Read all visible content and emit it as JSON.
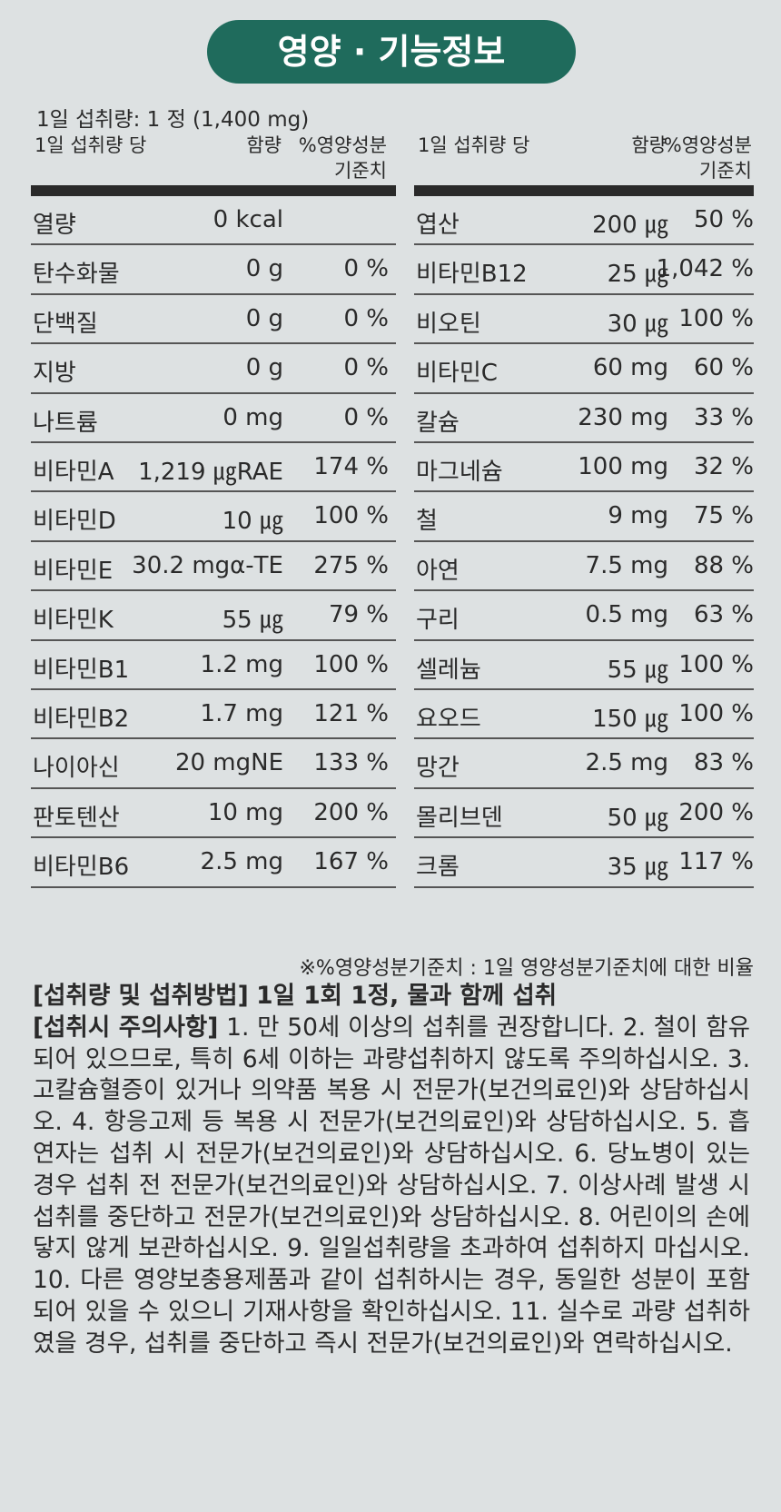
{
  "title": "영양 · 기능정보",
  "serving": "1일 섭취량: 1 정 (1,400 mg)",
  "table_header": {
    "per": "1일 섭취량 당",
    "amount": "함량",
    "dv_line1": "%영양성분",
    "dv_line2": "기준치"
  },
  "left_rows": [
    [
      "열량",
      "0 kcal",
      ""
    ],
    [
      "탄수화물",
      "0 g",
      "0 %"
    ],
    [
      "단백질",
      "0 g",
      "0 %"
    ],
    [
      "지방",
      "0 g",
      "0 %"
    ],
    [
      "나트륨",
      "0 mg",
      "0 %"
    ],
    [
      "비타민A",
      "1,219 ㎍RAE",
      "174 %"
    ],
    [
      "비타민D",
      "10 ㎍",
      "100 %"
    ],
    [
      "비타민E",
      "30.2 mgα-TE",
      "275 %"
    ],
    [
      "비타민K",
      "55 ㎍",
      "79 %"
    ],
    [
      "비타민B1",
      "1.2 mg",
      "100 %"
    ],
    [
      "비타민B2",
      "1.7 mg",
      "121 %"
    ],
    [
      "나이아신",
      "20 mgNE",
      "133 %"
    ],
    [
      "판토텐산",
      "10 mg",
      "200 %"
    ],
    [
      "비타민B6",
      "2.5 mg",
      "167 %"
    ]
  ],
  "right_rows": [
    [
      "엽산",
      "200 ㎍",
      "50 %"
    ],
    [
      "비타민B12",
      "25 ㎍",
      "1,042 %"
    ],
    [
      "비오틴",
      "30 ㎍",
      "100 %"
    ],
    [
      "비타민C",
      "60 mg",
      "60 %"
    ],
    [
      "칼슘",
      "230 mg",
      "33 %"
    ],
    [
      "마그네슘",
      "100 mg",
      "32 %"
    ],
    [
      "철",
      "9 mg",
      "75 %"
    ],
    [
      "아연",
      "7.5 mg",
      "88 %"
    ],
    [
      "구리",
      "0.5 mg",
      "63 %"
    ],
    [
      "셀레늄",
      "55 ㎍",
      "100 %"
    ],
    [
      "요오드",
      "150 ㎍",
      "100 %"
    ],
    [
      "망간",
      "2.5 mg",
      "83 %"
    ],
    [
      "몰리브덴",
      "50 ㎍",
      "200 %"
    ],
    [
      "크롬",
      "35 ㎍",
      "117 %"
    ]
  ],
  "footnote": "※%영양성분기준치 : 1일 영양성분기준치에 대한 비율",
  "intake": {
    "label": "[섭취량 및 섭취방법]",
    "text": "1일 1회 1정, 물과 함께 섭취"
  },
  "caution": {
    "label": "[섭취시 주의사항]",
    "text": "1. 만 50세 이상의 섭취를 권장합니다. 2. 철이 함유되어 있으므로, 특히 6세 이하는 과량섭취하지 않도록 주의하십시오. 3. 고칼슘혈증이 있거나 의약품 복용 시 전문가(보건의료인)와 상담하십시오. 4. 항응고제 등 복용 시 전문가(보건의료인)와 상담하십시오. 5. 흡연자는 섭취 시 전문가(보건의료인)와 상담하십시오. 6. 당뇨병이 있는 경우 섭취 전 전문가(보건의료인)와 상담하십시오. 7. 이상사례 발생 시 섭취를 중단하고 전문가(보건의료인)와 상담하십시오. 8. 어린이의 손에 닿지 않게 보관하십시오. 9. 일일섭취량을 초과하여 섭취하지 마십시오. 10. 다른 영양보충용제품과 같이 섭취하시는 경우, 동일한 성분이 포함되어 있을 수 있으니 기재사항을 확인하십시오. 11. 실수로 과량 섭취하였을 경우, 섭취를 중단하고 즉시 전문가(보건의료인)와 연락하십시오."
  }
}
